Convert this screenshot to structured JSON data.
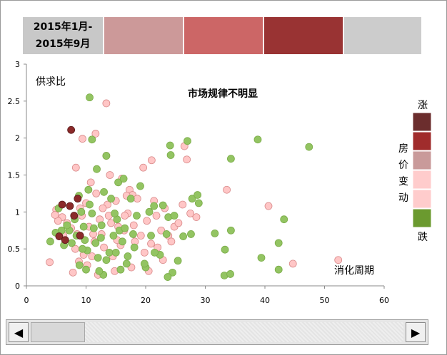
{
  "period": {
    "line1": "2015年1月-",
    "line2": "2015年9月"
  },
  "period_swatches": [
    "#cc9999",
    "#cc6666",
    "#993333",
    "#cccccc"
  ],
  "legend": {
    "top_label": "涨",
    "bottom_label": "跌",
    "vertical_label": [
      "房",
      "价",
      "变",
      "动"
    ],
    "colors": [
      "#6b2d2d",
      "#a02c2c",
      "#c99a9a",
      "#ffcccc",
      "#ffcccc",
      "#6b9a2f"
    ]
  },
  "colors": {
    "red_dark": "#8b2a2a",
    "pink": "#ffc6c6",
    "green": "#93c462"
  },
  "scrollbar": {
    "left_icon": "◀",
    "right_icon": "▶",
    "position_fraction": 0.0
  },
  "chart_data": {
    "type": "scatter",
    "title": "市场规律不明显",
    "ylabel": "供求比",
    "xlabel": "消化周期",
    "xlim": [
      0,
      60
    ],
    "ylim": [
      0,
      3
    ],
    "xticks": [
      0,
      10,
      20,
      30,
      40,
      50,
      60
    ],
    "yticks": [
      0,
      0.5,
      1,
      1.5,
      2,
      2.5,
      3
    ],
    "grid": false,
    "series": [
      {
        "color": "#8b2a2a",
        "points": [
          [
            7.5,
            2.11
          ],
          [
            7.3,
            1.08
          ],
          [
            8.6,
            1.18
          ],
          [
            6.0,
            1.1
          ],
          [
            9.0,
            0.68
          ],
          [
            5.5,
            0.67
          ],
          [
            6.5,
            0.62
          ],
          [
            8.0,
            0.95
          ]
        ]
      },
      {
        "color": "#ffc6c6",
        "points": [
          [
            13.4,
            2.47
          ],
          [
            9.4,
            1.99
          ],
          [
            11.6,
            2.06
          ],
          [
            8.3,
            1.6
          ],
          [
            13.4,
            1.76
          ],
          [
            14.0,
            1.5
          ],
          [
            16.0,
            1.45
          ],
          [
            19.6,
            1.6
          ],
          [
            21.0,
            1.7
          ],
          [
            26.5,
            1.89
          ],
          [
            26.9,
            1.71
          ],
          [
            40.6,
            1.08
          ],
          [
            33.6,
            1.3
          ],
          [
            28.5,
            0.93
          ],
          [
            52.3,
            0.35
          ],
          [
            44.7,
            0.3
          ],
          [
            3.9,
            0.32
          ],
          [
            5.0,
            1.03
          ],
          [
            6.0,
            0.93
          ],
          [
            6.8,
            0.85
          ],
          [
            7.5,
            0.78
          ],
          [
            8.2,
            0.5
          ],
          [
            8.5,
            0.7
          ],
          [
            9.3,
            0.95
          ],
          [
            10.0,
            1.12
          ],
          [
            10.5,
            0.8
          ],
          [
            11.0,
            0.4
          ],
          [
            11.4,
            0.6
          ],
          [
            11.7,
            1.25
          ],
          [
            12.3,
            0.9
          ],
          [
            12.6,
            0.7
          ],
          [
            13.0,
            0.52
          ],
          [
            13.6,
            1.1
          ],
          [
            14.2,
            0.85
          ],
          [
            14.5,
            0.4
          ],
          [
            15.0,
            1.15
          ],
          [
            15.4,
            0.8
          ],
          [
            15.8,
            0.55
          ],
          [
            16.4,
            0.75
          ],
          [
            17.0,
            0.98
          ],
          [
            17.3,
            1.3
          ],
          [
            17.8,
            1.23
          ],
          [
            18.2,
            0.6
          ],
          [
            18.6,
            1.18
          ],
          [
            19.2,
            0.68
          ],
          [
            19.8,
            0.45
          ],
          [
            20.2,
            0.88
          ],
          [
            20.9,
            0.57
          ],
          [
            21.4,
            1.15
          ],
          [
            22.0,
            0.52
          ],
          [
            22.6,
            0.75
          ],
          [
            23.2,
            1.05
          ],
          [
            23.8,
            0.68
          ],
          [
            24.3,
            0.6
          ],
          [
            24.8,
            0.8
          ],
          [
            25.5,
            0.85
          ],
          [
            26.2,
            1.1
          ],
          [
            27.5,
            0.98
          ],
          [
            16.5,
            0.95
          ],
          [
            10.2,
            0.28
          ],
          [
            12.0,
            0.15
          ],
          [
            14.8,
            0.2
          ],
          [
            17.6,
            0.25
          ],
          [
            20.5,
            0.2
          ],
          [
            22.9,
            0.35
          ],
          [
            7.8,
            0.18
          ],
          [
            8.8,
            0.33
          ],
          [
            9.6,
            0.42
          ],
          [
            15.2,
            0.62
          ],
          [
            11.2,
            0.7
          ],
          [
            12.8,
            1.05
          ],
          [
            18.0,
            0.82
          ],
          [
            21.8,
            0.95
          ],
          [
            6.2,
            0.68
          ],
          [
            5.3,
            0.88
          ],
          [
            4.8,
            0.96
          ],
          [
            9.0,
            1.05
          ],
          [
            10.8,
            1.4
          ],
          [
            13.8,
            0.95
          ],
          [
            16.8,
            1.22
          ]
        ]
      },
      {
        "color": "#93c462",
        "points": [
          [
            10.6,
            2.55
          ],
          [
            11.0,
            1.98
          ],
          [
            13.4,
            1.76
          ],
          [
            15.4,
            1.4
          ],
          [
            16.3,
            1.45
          ],
          [
            24.1,
            1.9
          ],
          [
            27.0,
            1.96
          ],
          [
            24.2,
            1.77
          ],
          [
            38.8,
            1.98
          ],
          [
            47.4,
            1.88
          ],
          [
            34.3,
            1.72
          ],
          [
            19.1,
            1.35
          ],
          [
            17.5,
            1.18
          ],
          [
            27.8,
            1.18
          ],
          [
            28.7,
            1.23
          ],
          [
            28.9,
            1.12
          ],
          [
            43.2,
            0.9
          ],
          [
            31.6,
            0.71
          ],
          [
            33.3,
            0.49
          ],
          [
            34.3,
            0.75
          ],
          [
            42.3,
            0.58
          ],
          [
            39.4,
            0.38
          ],
          [
            42.3,
            0.22
          ],
          [
            33.2,
            0.14
          ],
          [
            34.2,
            0.16
          ],
          [
            24.5,
            0.18
          ],
          [
            23.7,
            0.12
          ],
          [
            25.4,
            0.34
          ],
          [
            26.3,
            0.67
          ],
          [
            27.6,
            0.7
          ],
          [
            23.8,
            0.93
          ],
          [
            24.8,
            0.95
          ],
          [
            23.5,
            0.7
          ],
          [
            22.4,
            0.42
          ],
          [
            21.5,
            0.45
          ],
          [
            20.9,
            0.68
          ],
          [
            20.0,
            0.25
          ],
          [
            19.8,
            0.3
          ],
          [
            21.4,
            1.08
          ],
          [
            22.9,
            1.09
          ],
          [
            20.6,
            1.0
          ],
          [
            18.1,
            0.52
          ],
          [
            17.9,
            0.7
          ],
          [
            17.0,
            0.4
          ],
          [
            16.8,
            0.3
          ],
          [
            16.1,
            0.6
          ],
          [
            15.6,
            0.75
          ],
          [
            15.2,
            0.9
          ],
          [
            14.8,
            0.98
          ],
          [
            14.2,
            1.18
          ],
          [
            13.9,
            0.45
          ],
          [
            13.4,
            0.35
          ],
          [
            12.9,
            0.15
          ],
          [
            12.2,
            0.2
          ],
          [
            11.6,
            0.58
          ],
          [
            11.3,
            0.78
          ],
          [
            11.0,
            0.98
          ],
          [
            10.6,
            1.1
          ],
          [
            10.4,
            1.3
          ],
          [
            10.2,
            0.48
          ],
          [
            9.8,
            0.62
          ],
          [
            9.6,
            0.8
          ],
          [
            9.2,
            1.0
          ],
          [
            8.8,
            1.22
          ],
          [
            8.4,
            0.68
          ],
          [
            8.1,
            0.9
          ],
          [
            7.6,
            0.58
          ],
          [
            7.2,
            0.75
          ],
          [
            6.8,
            0.82
          ],
          [
            6.3,
            0.55
          ],
          [
            5.9,
            0.75
          ],
          [
            5.4,
            1.05
          ],
          [
            4.9,
            0.72
          ],
          [
            4.0,
            0.6
          ],
          [
            11.8,
            1.58
          ],
          [
            12.6,
            0.82
          ],
          [
            13.0,
            1.27
          ],
          [
            14.6,
            0.68
          ],
          [
            15.0,
            0.45
          ],
          [
            16.5,
            0.78
          ],
          [
            18.5,
            0.95
          ],
          [
            12.5,
            0.65
          ],
          [
            10.0,
            0.22
          ],
          [
            8.9,
            0.28
          ],
          [
            9.4,
            0.5
          ],
          [
            15.8,
            0.22
          ],
          [
            12.0,
            0.38
          ]
        ]
      }
    ]
  }
}
